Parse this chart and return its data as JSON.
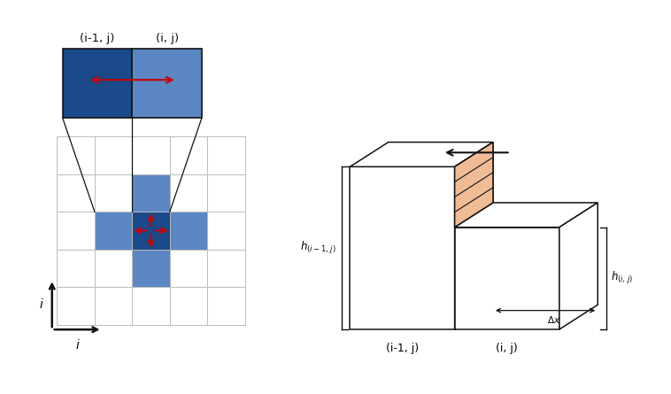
{
  "grid_color": "#bbbbbb",
  "dark_blue": "#1a4a8a",
  "light_blue": "#5b87c5",
  "lighter_blue": "#90b4d8",
  "red_arrow": "#cc0000",
  "orange_fill": "#f0bc96",
  "black": "#111111",
  "white": "#ffffff",
  "label_zoom_left": "(i-1, j)",
  "label_zoom_right": "(i, j)",
  "label_3d_left": "(i-1, j)",
  "label_3d_right": "(i, j)",
  "axis_label_vert": "i",
  "axis_label_horiz": "i",
  "grid_ncols": 5,
  "grid_nrows": 5,
  "cell_size": 1.0
}
